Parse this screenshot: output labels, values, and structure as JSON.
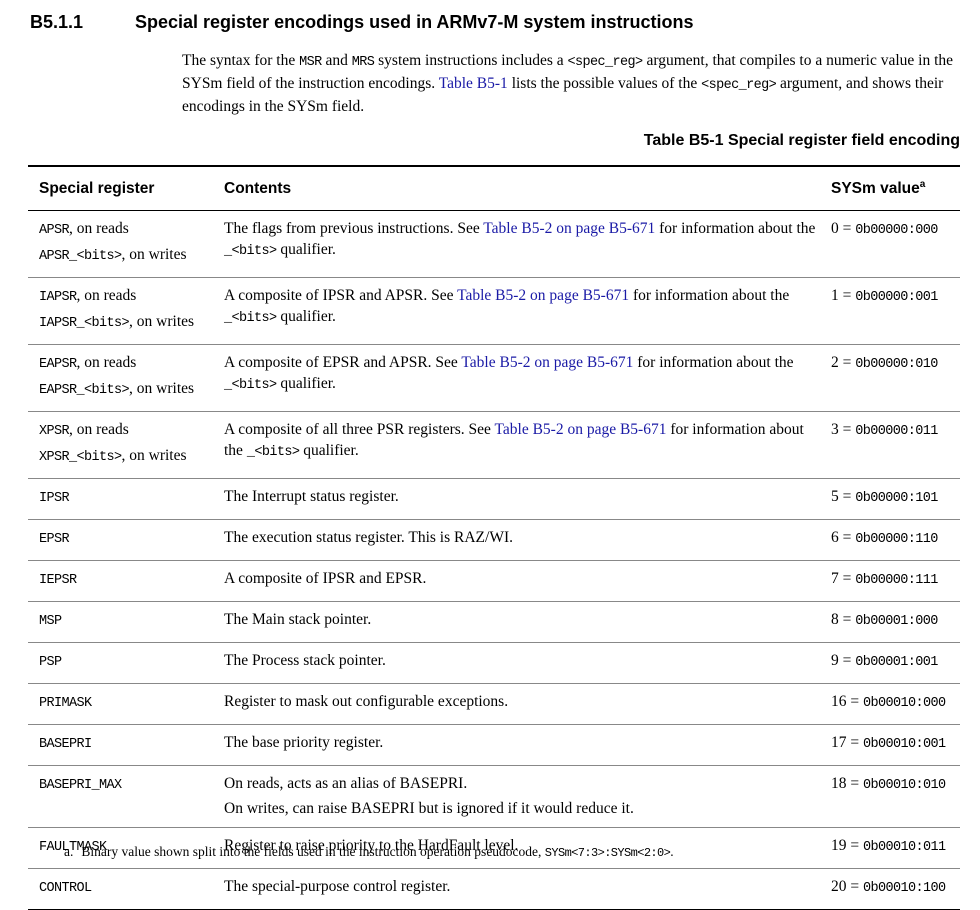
{
  "section": {
    "number": "B5.1.1",
    "title": "Special register encodings used in ARMv7-M system instructions"
  },
  "intro": [
    {
      "text": "The syntax for the "
    },
    {
      "code": "MSR"
    },
    {
      "text": " and "
    },
    {
      "code": "MRS"
    },
    {
      "text": " system instructions includes a "
    },
    {
      "code": "<spec_reg>"
    },
    {
      "text": " argument, that compiles to a numeric value in the SYSm field of the instruction encodings. "
    },
    {
      "link": "Table B5-1"
    },
    {
      "text": " lists the possible values of the "
    },
    {
      "code": "<spec_reg>"
    },
    {
      "text": " argument, and shows their encodings in the SYSm field."
    }
  ],
  "table": {
    "caption": "Table B5-1 Special register field encoding",
    "headers": [
      "Special register",
      "Contents",
      "SYSm value"
    ],
    "header_note_marker": "a",
    "rows": [
      {
        "register": [
          [
            {
              "code": "APSR"
            },
            {
              "text": ", on reads"
            }
          ],
          [
            {
              "code": "APSR_<bits>"
            },
            {
              "text": ", on writes"
            }
          ]
        ],
        "contents": [
          [
            {
              "text": "The flags from previous instructions. See "
            },
            {
              "link": "Table B5-2 on page B5-671"
            },
            {
              "text": " for information about the "
            },
            {
              "code": "_<bits>"
            },
            {
              "text": " qualifier."
            }
          ]
        ],
        "sysm": [
          {
            "text": "0 = "
          },
          {
            "code": "0b00000:000"
          }
        ]
      },
      {
        "register": [
          [
            {
              "code": "IAPSR"
            },
            {
              "text": ", on reads"
            }
          ],
          [
            {
              "code": "IAPSR_<bits>"
            },
            {
              "text": ", on writes"
            }
          ]
        ],
        "contents": [
          [
            {
              "text": "A composite of IPSR and APSR. See "
            },
            {
              "link": "Table B5-2 on page B5-671"
            },
            {
              "text": " for information about the "
            },
            {
              "code": "_<bits>"
            },
            {
              "text": " qualifier."
            }
          ]
        ],
        "sysm": [
          {
            "text": "1 = "
          },
          {
            "code": "0b00000:001"
          }
        ]
      },
      {
        "register": [
          [
            {
              "code": "EAPSR"
            },
            {
              "text": ", on reads"
            }
          ],
          [
            {
              "code": "EAPSR_<bits>"
            },
            {
              "text": ", on writes"
            }
          ]
        ],
        "contents": [
          [
            {
              "text": "A composite of EPSR and APSR. See "
            },
            {
              "link": "Table B5-2 on page B5-671"
            },
            {
              "text": " for information about the "
            },
            {
              "code": "_<bits>"
            },
            {
              "text": " qualifier."
            }
          ]
        ],
        "sysm": [
          {
            "text": "2 = "
          },
          {
            "code": "0b00000:010"
          }
        ]
      },
      {
        "register": [
          [
            {
              "code": "XPSR"
            },
            {
              "text": ", on reads"
            }
          ],
          [
            {
              "code": "XPSR_<bits>"
            },
            {
              "text": ", on writes"
            }
          ]
        ],
        "contents": [
          [
            {
              "text": "A composite of all three PSR registers. See "
            },
            {
              "link": "Table B5-2 on page B5-671"
            },
            {
              "text": " for information about the "
            },
            {
              "code": "_<bits>"
            },
            {
              "text": " qualifier."
            }
          ]
        ],
        "sysm": [
          {
            "text": "3 = "
          },
          {
            "code": "0b00000:011"
          }
        ]
      },
      {
        "register": [
          [
            {
              "code": "IPSR"
            }
          ]
        ],
        "contents": [
          [
            {
              "text": "The Interrupt status register."
            }
          ]
        ],
        "sysm": [
          {
            "text": "5 = "
          },
          {
            "code": "0b00000:101"
          }
        ]
      },
      {
        "register": [
          [
            {
              "code": "EPSR"
            }
          ]
        ],
        "contents": [
          [
            {
              "text": "The execution status register. This is RAZ/WI."
            }
          ]
        ],
        "sysm": [
          {
            "text": "6 = "
          },
          {
            "code": "0b00000:110"
          }
        ]
      },
      {
        "register": [
          [
            {
              "code": "IEPSR"
            }
          ]
        ],
        "contents": [
          [
            {
              "text": "A composite of IPSR and EPSR."
            }
          ]
        ],
        "sysm": [
          {
            "text": "7 = "
          },
          {
            "code": "0b00000:111"
          }
        ]
      },
      {
        "register": [
          [
            {
              "code": "MSP"
            }
          ]
        ],
        "contents": [
          [
            {
              "text": "The Main stack pointer."
            }
          ]
        ],
        "sysm": [
          {
            "text": "8 = "
          },
          {
            "code": "0b00001:000"
          }
        ]
      },
      {
        "register": [
          [
            {
              "code": "PSP"
            }
          ]
        ],
        "contents": [
          [
            {
              "text": "The Process stack pointer."
            }
          ]
        ],
        "sysm": [
          {
            "text": "9 = "
          },
          {
            "code": "0b00001:001"
          }
        ]
      },
      {
        "register": [
          [
            {
              "code": "PRIMASK"
            }
          ]
        ],
        "contents": [
          [
            {
              "text": "Register to mask out configurable exceptions."
            }
          ]
        ],
        "sysm": [
          {
            "text": "16 = "
          },
          {
            "code": "0b00010:000"
          }
        ]
      },
      {
        "register": [
          [
            {
              "code": "BASEPRI"
            }
          ]
        ],
        "contents": [
          [
            {
              "text": "The base priority register."
            }
          ]
        ],
        "sysm": [
          {
            "text": "17 = "
          },
          {
            "code": "0b00010:001"
          }
        ]
      },
      {
        "register": [
          [
            {
              "code": "BASEPRI_MAX"
            }
          ]
        ],
        "contents": [
          [
            {
              "text": "On reads, acts as an alias of BASEPRI."
            }
          ],
          [
            {
              "text": "On writes, can raise BASEPRI but is ignored if it would reduce it."
            }
          ]
        ],
        "sysm": [
          {
            "text": "18 = "
          },
          {
            "code": "0b00010:010"
          }
        ]
      },
      {
        "register": [
          [
            {
              "code": "FAULTMASK"
            }
          ]
        ],
        "contents": [
          [
            {
              "text": "Register to raise priority to the HardFault level."
            }
          ]
        ],
        "sysm": [
          {
            "text": "19 = "
          },
          {
            "code": "0b00010:011"
          }
        ]
      },
      {
        "register": [
          [
            {
              "code": "CONTROL"
            }
          ]
        ],
        "contents": [
          [
            {
              "text": "The special-purpose control register."
            }
          ]
        ],
        "sysm": [
          {
            "text": "20 = "
          },
          {
            "code": "0b00010:100"
          }
        ]
      }
    ]
  },
  "footnote": {
    "marker": "a.",
    "text": [
      {
        "text": "Binary value shown split into the fields used in the instruction operation pseudocode, "
      },
      {
        "code": "SYSm<7:3>:SYSm<2:0>"
      },
      {
        "text": "."
      }
    ]
  }
}
